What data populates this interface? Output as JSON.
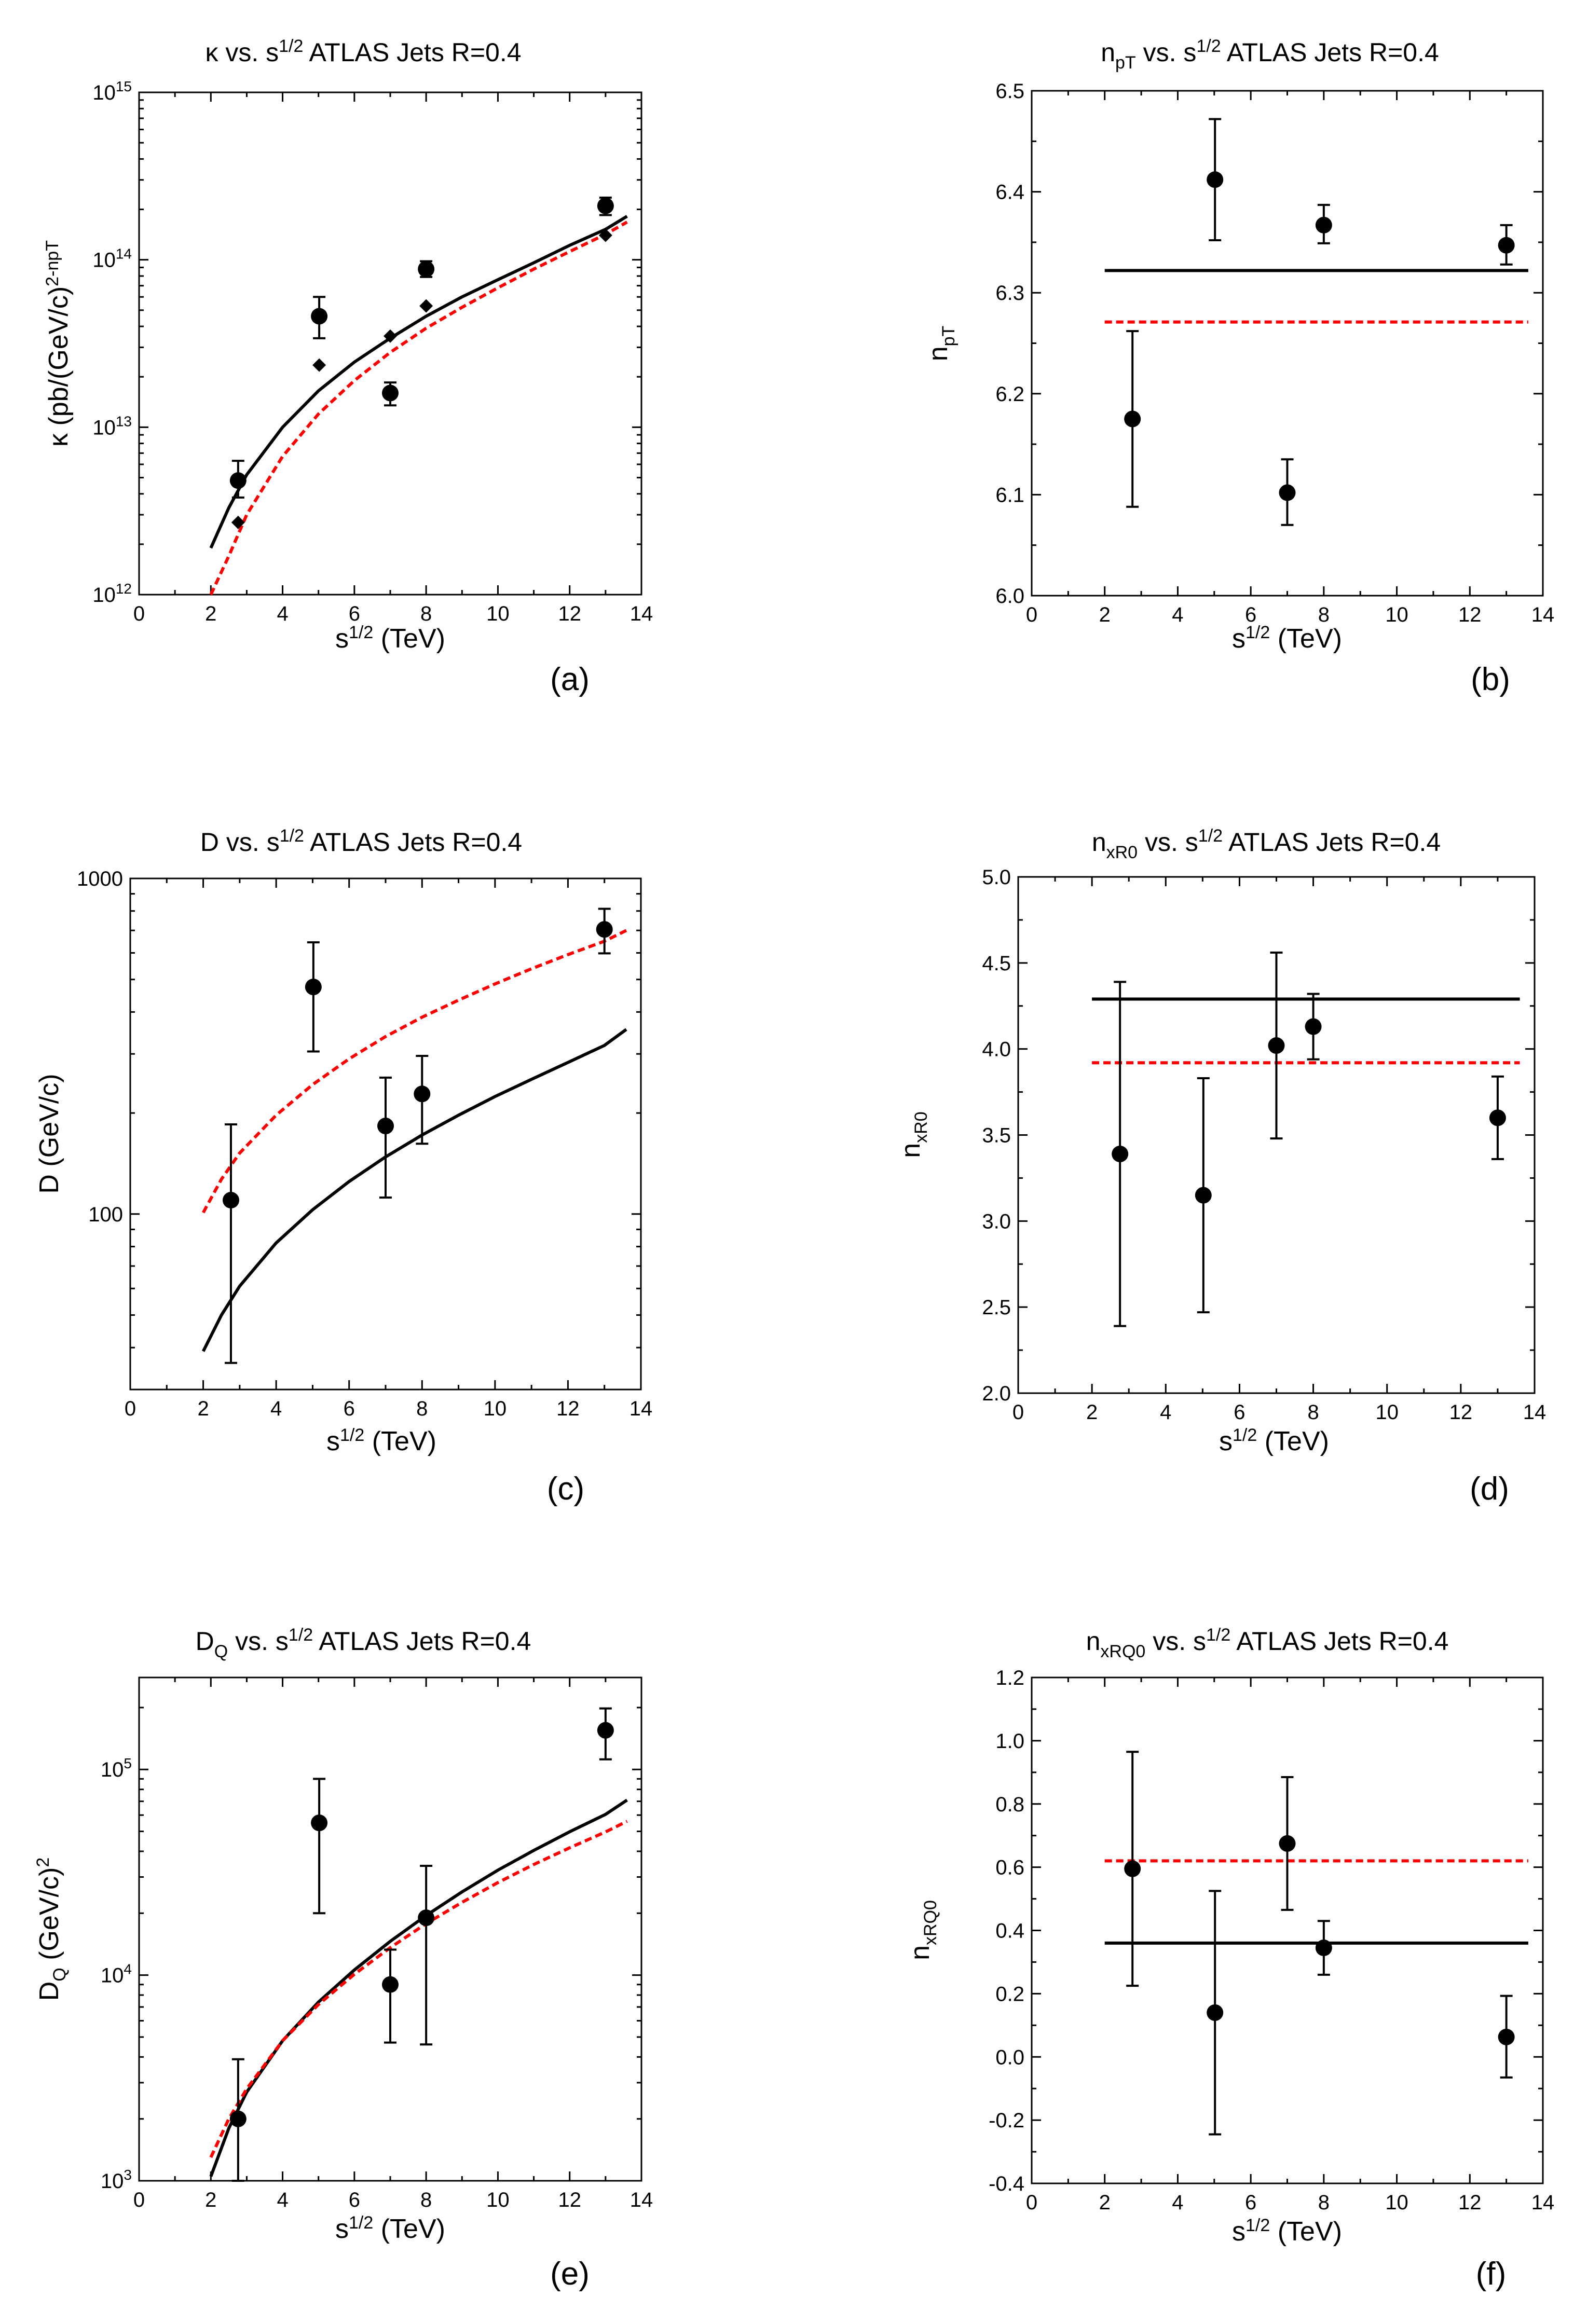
{
  "colors": {
    "fit_solid": "#000000",
    "fit_dashed": "#ff0000",
    "marker": "#000000"
  },
  "panels": [
    {
      "id": "a",
      "title": {
        "prefix": "κ vs. s",
        "sup1": "1/2",
        "suffix": " ATLAS Jets R=0.4"
      },
      "ylabel": {
        "base": "κ (pb/(GeV/c)",
        "sup": "2-npT"
      },
      "xlabel": {
        "base": "s",
        "sup": "1/2",
        "tail": " (TeV)"
      },
      "label": "(a)"
    },
    {
      "id": "b",
      "title": {
        "prefix": "n",
        "sub1": "pT",
        "mid": " vs. s",
        "sup1": "1/2",
        "suffix": " ATLAS Jets R=0.4"
      },
      "ylabel": {
        "base": "n",
        "sub": "pT"
      },
      "xlabel": {
        "base": "s",
        "sup": "1/2",
        "tail": " (TeV)"
      },
      "label": "(b)"
    },
    {
      "id": "c",
      "title": {
        "prefix": "D vs. s",
        "sup1": "1/2",
        "suffix": " ATLAS Jets R=0.4"
      },
      "ylabel": {
        "base": "D (GeV/c)"
      },
      "xlabel": {
        "base": "s",
        "sup": "1/2",
        "tail": " (TeV)"
      },
      "label": "(c)"
    },
    {
      "id": "d",
      "title": {
        "prefix": "n",
        "sub1": "xR0",
        "mid": " vs. s",
        "sup1": "1/2",
        "suffix": " ATLAS Jets R=0.4"
      },
      "ylabel": {
        "base": "n",
        "sub": "xR0"
      },
      "xlabel": {
        "base": "s",
        "sup": "1/2",
        "tail": " (TeV)"
      },
      "label": "(d)"
    },
    {
      "id": "e",
      "title": {
        "prefix": "D",
        "sub1": "Q",
        "mid": " vs. s",
        "sup1": "1/2",
        "suffix": " ATLAS Jets R=0.4"
      },
      "ylabel": {
        "base": "D",
        "sub": "Q",
        "mid": " (GeV/c)",
        "sup": "2"
      },
      "xlabel": {
        "base": "s",
        "sup": "1/2",
        "tail": " (TeV)"
      },
      "label": "(e)"
    },
    {
      "id": "f",
      "title": {
        "prefix": "n",
        "sub1": "xRQ0",
        "mid": " vs. s",
        "sup1": "1/2",
        "suffix": " ATLAS Jets R=0.4"
      },
      "ylabel": {
        "base": "n",
        "sub": "xRQ0"
      },
      "xlabel": {
        "base": "s",
        "sup": "1/2",
        "tail": " (TeV)"
      },
      "label": "(f)"
    }
  ],
  "chart_data": [
    {
      "id": "a",
      "type": "scatter",
      "yscale": "log",
      "xlim": [
        0,
        14
      ],
      "ylim": [
        1000000000000.0,
        1000000000000000.0
      ],
      "xticks": [
        0,
        2,
        4,
        6,
        8,
        10,
        12,
        14
      ],
      "yticks": [
        {
          "v": 1000000000000.0,
          "base": "10",
          "exp": "12"
        },
        {
          "v": 10000000000000.0,
          "base": "10",
          "exp": "13"
        },
        {
          "v": 100000000000000.0,
          "base": "10",
          "exp": "14"
        },
        {
          "v": 1000000000000000.0,
          "base": "10",
          "exp": "15"
        }
      ],
      "points": [
        {
          "x": 2.76,
          "y": 4800000000000.0,
          "lo": 3800000000000.0,
          "hi": 6300000000000.0
        },
        {
          "x": 5.02,
          "y": 46000000000000.0,
          "lo": 34000000000000.0,
          "hi": 60000000000000.0
        },
        {
          "x": 7.0,
          "y": 16000000000000.0,
          "lo": 13500000000000.0,
          "hi": 18500000000000.0
        },
        {
          "x": 8.0,
          "y": 88000000000000.0,
          "lo": 79000000000000.0,
          "hi": 98000000000000.0
        },
        {
          "x": 13.0,
          "y": 210000000000000.0,
          "lo": 185000000000000.0,
          "hi": 235000000000000.0
        }
      ],
      "diamonds": [
        {
          "x": 2.76,
          "y": 2700000000000.0
        },
        {
          "x": 5.02,
          "y": 23500000000000.0
        },
        {
          "x": 7.0,
          "y": 35000000000000.0
        },
        {
          "x": 8.0,
          "y": 53000000000000.0
        },
        {
          "x": 13.0,
          "y": 140000000000000.0
        }
      ],
      "fits": [
        {
          "style": "solid",
          "x": [
            2,
            2.5,
            3,
            4,
            5,
            6,
            7,
            8,
            9,
            10,
            11,
            12,
            13,
            13.6
          ],
          "y": [
            1900000000000.0,
            3300000000000.0,
            5200000000000.0,
            10000000000000.0,
            16500000000000.0,
            24500000000000.0,
            34000000000000.0,
            46000000000000.0,
            60000000000000.0,
            76000000000000.0,
            96000000000000.0,
            122000000000000.0,
            152000000000000.0,
            182000000000000.0
          ]
        },
        {
          "style": "dashed",
          "x": [
            2,
            2.5,
            3,
            4,
            5,
            6,
            7,
            8,
            9,
            10,
            11,
            12,
            13,
            13.6
          ],
          "y": [
            750000000000.0,
            1700000000000.0,
            3000000000000.0,
            6700000000000.0,
            12000000000000.0,
            19000000000000.0,
            28000000000000.0,
            39000000000000.0,
            52000000000000.0,
            68000000000000.0,
            88000000000000.0,
            112000000000000.0,
            142000000000000.0,
            168000000000000.0
          ]
        }
      ]
    },
    {
      "id": "b",
      "type": "scatter",
      "yscale": "linear",
      "xlim": [
        0,
        14
      ],
      "ylim": [
        6.0,
        6.5
      ],
      "xticks": [
        0,
        2,
        4,
        6,
        8,
        10,
        12,
        14
      ],
      "yticks": [
        {
          "v": 6.0,
          "text": "6.0"
        },
        {
          "v": 6.1,
          "text": "6.1"
        },
        {
          "v": 6.2,
          "text": "6.2"
        },
        {
          "v": 6.3,
          "text": "6.3"
        },
        {
          "v": 6.4,
          "text": "6.4"
        },
        {
          "v": 6.5,
          "text": "6.5"
        }
      ],
      "points": [
        {
          "x": 2.76,
          "y": 6.175,
          "lo": 6.088,
          "hi": 6.262
        },
        {
          "x": 5.02,
          "y": 6.412,
          "lo": 6.352,
          "hi": 6.472
        },
        {
          "x": 7.0,
          "y": 6.102,
          "lo": 6.07,
          "hi": 6.135
        },
        {
          "x": 8.0,
          "y": 6.367,
          "lo": 6.349,
          "hi": 6.387
        },
        {
          "x": 13.0,
          "y": 6.347,
          "lo": 6.328,
          "hi": 6.367
        }
      ],
      "fits": [
        {
          "style": "solid",
          "x": [
            2,
            13.6
          ],
          "y": [
            6.322,
            6.322
          ]
        },
        {
          "style": "dashed",
          "x": [
            2,
            13.6
          ],
          "y": [
            6.271,
            6.271
          ]
        }
      ]
    },
    {
      "id": "c",
      "type": "scatter",
      "yscale": "log",
      "xlim": [
        0,
        14
      ],
      "ylim": [
        30,
        1000
      ],
      "xticks": [
        0,
        2,
        4,
        6,
        8,
        10,
        12,
        14
      ],
      "yticks": [
        {
          "v": 100,
          "text": "100"
        },
        {
          "v": 1000,
          "text": "1000"
        }
      ],
      "points": [
        {
          "x": 2.76,
          "y": 110,
          "lo": 36,
          "hi": 185
        },
        {
          "x": 5.02,
          "y": 475,
          "lo": 305,
          "hi": 645
        },
        {
          "x": 7.0,
          "y": 183,
          "lo": 112,
          "hi": 255
        },
        {
          "x": 8.0,
          "y": 228,
          "lo": 162,
          "hi": 296
        },
        {
          "x": 13.0,
          "y": 705,
          "lo": 598,
          "hi": 812
        }
      ],
      "fits": [
        {
          "style": "solid",
          "x": [
            2,
            2.5,
            3,
            4,
            5,
            6,
            7,
            8,
            9,
            10,
            11,
            12,
            13,
            13.6
          ],
          "y": [
            39,
            50,
            61,
            82,
            103,
            125,
            148,
            172,
            197,
            224,
            252,
            283,
            318,
            355
          ]
        },
        {
          "style": "dashed",
          "x": [
            2,
            2.5,
            3,
            4,
            5,
            6,
            7,
            8,
            9,
            10,
            11,
            12,
            13,
            13.6
          ],
          "y": [
            101,
            127,
            152,
            197,
            243,
            290,
            338,
            386,
            434,
            485,
            538,
            593,
            650,
            700
          ]
        }
      ]
    },
    {
      "id": "d",
      "type": "scatter",
      "yscale": "linear",
      "xlim": [
        0,
        14
      ],
      "ylim": [
        2.0,
        5.0
      ],
      "xticks": [
        0,
        2,
        4,
        6,
        8,
        10,
        12,
        14
      ],
      "yticks": [
        {
          "v": 2.0,
          "text": "2.0"
        },
        {
          "v": 2.5,
          "text": "2.5"
        },
        {
          "v": 3.0,
          "text": "3.0"
        },
        {
          "v": 3.5,
          "text": "3.5"
        },
        {
          "v": 4.0,
          "text": "4.0"
        },
        {
          "v": 4.5,
          "text": "4.5"
        },
        {
          "v": 5.0,
          "text": "5.0"
        }
      ],
      "points": [
        {
          "x": 2.76,
          "y": 3.39,
          "lo": 2.39,
          "hi": 4.39
        },
        {
          "x": 5.02,
          "y": 3.15,
          "lo": 2.47,
          "hi": 3.83
        },
        {
          "x": 7.0,
          "y": 4.02,
          "lo": 3.48,
          "hi": 4.56
        },
        {
          "x": 8.0,
          "y": 4.13,
          "lo": 3.94,
          "hi": 4.32
        },
        {
          "x": 13.0,
          "y": 3.6,
          "lo": 3.36,
          "hi": 3.84
        }
      ],
      "fits": [
        {
          "style": "solid",
          "x": [
            2,
            13.6
          ],
          "y": [
            4.29,
            4.29
          ]
        },
        {
          "style": "dashed",
          "x": [
            2,
            13.6
          ],
          "y": [
            3.92,
            3.92
          ]
        }
      ]
    },
    {
      "id": "e",
      "type": "scatter",
      "yscale": "log",
      "xlim": [
        0,
        14
      ],
      "ylim": [
        1000,
        280000
      ],
      "xticks": [
        0,
        2,
        4,
        6,
        8,
        10,
        12,
        14
      ],
      "yticks": [
        {
          "v": 1000,
          "base": "10",
          "exp": "3"
        },
        {
          "v": 10000,
          "base": "10",
          "exp": "4"
        },
        {
          "v": 100000,
          "base": "10",
          "exp": "5"
        }
      ],
      "points": [
        {
          "x": 2.76,
          "y": 2000,
          "lo": 900,
          "hi": 3900
        },
        {
          "x": 5.02,
          "y": 55000,
          "lo": 20000,
          "hi": 90000
        },
        {
          "x": 7.0,
          "y": 9000,
          "lo": 4700,
          "hi": 13300
        },
        {
          "x": 8.0,
          "y": 19000,
          "lo": 4600,
          "hi": 34000
        },
        {
          "x": 13.0,
          "y": 155000,
          "lo": 112000,
          "hi": 198000
        }
      ],
      "fits": [
        {
          "style": "solid",
          "x": [
            2,
            2.5,
            3,
            4,
            5,
            6,
            7,
            8,
            9,
            10,
            11,
            12,
            13,
            13.6
          ],
          "y": [
            1050,
            1800,
            2700,
            4800,
            7400,
            10600,
            14600,
            19500,
            25400,
            32400,
            40400,
            49800,
            60500,
            71000
          ]
        },
        {
          "style": "dashed",
          "x": [
            2,
            2.5,
            3,
            4,
            5,
            6,
            7,
            8,
            9,
            10,
            11,
            12,
            13,
            13.6
          ],
          "y": [
            1300,
            2000,
            2800,
            4800,
            7200,
            10100,
            13600,
            17800,
            22600,
            28200,
            34500,
            41600,
            49700,
            56000
          ]
        }
      ]
    },
    {
      "id": "f",
      "type": "scatter",
      "yscale": "linear",
      "xlim": [
        0,
        14
      ],
      "ylim": [
        -0.4,
        1.2
      ],
      "xticks": [
        0,
        2,
        4,
        6,
        8,
        10,
        12,
        14
      ],
      "yticks": [
        {
          "v": -0.4,
          "text": "-0.4"
        },
        {
          "v": -0.2,
          "text": "-0.2"
        },
        {
          "v": 0.0,
          "text": "0.0"
        },
        {
          "v": 0.2,
          "text": "0.2"
        },
        {
          "v": 0.4,
          "text": "0.4"
        },
        {
          "v": 0.6,
          "text": "0.6"
        },
        {
          "v": 0.8,
          "text": "0.8"
        },
        {
          "v": 1.0,
          "text": "1.0"
        },
        {
          "v": 1.2,
          "text": "1.2"
        }
      ],
      "points": [
        {
          "x": 2.76,
          "y": 0.595,
          "lo": 0.225,
          "hi": 0.965
        },
        {
          "x": 5.02,
          "y": 0.14,
          "lo": -0.245,
          "hi": 0.525
        },
        {
          "x": 7.0,
          "y": 0.675,
          "lo": 0.465,
          "hi": 0.885
        },
        {
          "x": 8.0,
          "y": 0.345,
          "lo": 0.26,
          "hi": 0.43
        },
        {
          "x": 13.0,
          "y": 0.063,
          "lo": -0.065,
          "hi": 0.193
        }
      ],
      "fits": [
        {
          "style": "solid",
          "x": [
            2,
            13.6
          ],
          "y": [
            0.36,
            0.36
          ]
        },
        {
          "style": "dashed",
          "x": [
            2,
            13.6
          ],
          "y": [
            0.62,
            0.62
          ]
        }
      ]
    }
  ]
}
